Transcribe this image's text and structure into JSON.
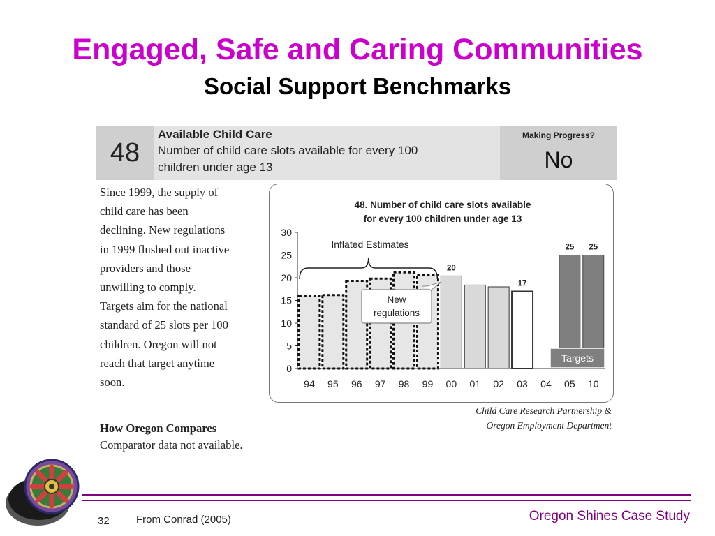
{
  "title": "Engaged, Safe and Caring Communities",
  "subtitle": "Social Support Benchmarks",
  "benchmark": {
    "number": "48",
    "title": "Available Child Care",
    "description_line1": "Number of child care slots available for every 100",
    "description_line2": "children under age 13",
    "progress_label": "Making Progress?",
    "progress_value": "No"
  },
  "paragraph": [
    "Since 1999, the supply of",
    "child care has been",
    "declining. New regulations",
    "in 1999 flushed out inactive",
    "providers and those",
    "unwilling to comply.",
    "Targets aim for the national",
    "standard of 25 slots per 100",
    "children. Oregon will not",
    "reach that target anytime",
    "soon."
  ],
  "chart_data": {
    "type": "bar",
    "title_line1": "48. Number of child care slots available",
    "title_line2": "for every 100 children under age 13",
    "categories": [
      "94",
      "95",
      "96",
      "97",
      "98",
      "99",
      "00",
      "01",
      "02",
      "03",
      "04",
      "05",
      "10"
    ],
    "values": [
      16,
      16.2,
      19.3,
      19.8,
      21.2,
      20.6,
      20.4,
      18.4,
      18,
      17,
      null,
      25,
      25
    ],
    "styles": [
      "inflated",
      "inflated",
      "inflated",
      "inflated",
      "inflated",
      "inflated",
      "actual",
      "actual",
      "actual",
      "actual",
      "none",
      "target",
      "target"
    ],
    "data_labels": [
      "",
      "",
      "",
      "",
      "",
      "",
      "20",
      "",
      "",
      "17",
      "",
      "25",
      "25"
    ],
    "yticks": [
      "0",
      "5",
      "10",
      "15",
      "20",
      "25",
      "30"
    ],
    "ylim": [
      0,
      30
    ],
    "grid": false,
    "annotations": {
      "inflated": "Inflated Estimates",
      "new_reg_line1": "New",
      "new_reg_line2": "regulations",
      "targets": "Targets"
    },
    "colors": {
      "actual": "#d9d9d9",
      "target": "#7f7f7f",
      "inflated": "#e6e6e6"
    }
  },
  "source_line1": "Child Care Research Partnership &",
  "source_line2": "Oregon Employment Department",
  "compare_heading": "How Oregon Compares",
  "compare_text": "Comparator data not available.",
  "footer": {
    "page_number": "32",
    "credit": "From Conrad (2005)",
    "case_study": "Oregon Shines Case Study"
  },
  "logo_icon": "oregon-shines-wheel-logo"
}
